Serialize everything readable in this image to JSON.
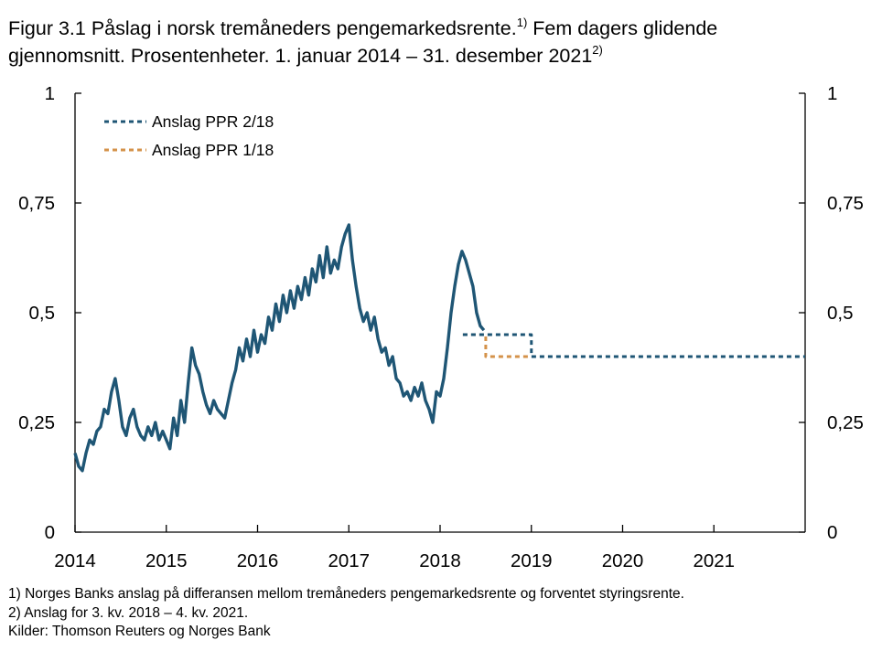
{
  "title": {
    "line1": "Figur 3.1 Påslag i norsk tremåneders pengemarkedsrente.",
    "line1_sup": "1)",
    "line1_tail": " Fem dagers glidende",
    "line2": "gjennomsnitt. Prosentenheter. 1. januar 2014 – 31. desember 2021",
    "line2_sup": "2)"
  },
  "notes": {
    "note1": "1) Norges Banks anslag på differansen mellom tremåneders pengemarkedsrente og forventet styringsrente.",
    "note2": "2) Anslag for 3. kv. 2018 – 4. kv. 2021.",
    "sources": "Kilder: Thomson Reuters og Norges Bank"
  },
  "chart_data": {
    "type": "line",
    "title": "Figur 3.1 Påslag i norsk tremåneders pengemarkedsrente. Fem dagers glidende gjennomsnitt. Prosentenheter. 1. januar 2014 – 31. desember 2021",
    "xlabel": "",
    "ylabel": "Prosentenheter",
    "xlim": [
      2014,
      2022
    ],
    "ylim": [
      0,
      1
    ],
    "x_ticks": [
      "2014",
      "2015",
      "2016",
      "2017",
      "2018",
      "2019",
      "2020",
      "2021"
    ],
    "y_ticks": [
      "0",
      "0,25",
      "0,5",
      "0,75",
      "1"
    ],
    "grid": false,
    "legend_position": "top-left",
    "colors": {
      "historical": "#1f5675",
      "ppr_2_18": "#1f5675",
      "ppr_1_18": "#d4924a",
      "axis": "#000000"
    },
    "series": [
      {
        "name": "",
        "style": "solid",
        "x": [
          2014.0,
          2014.04,
          2014.08,
          2014.12,
          2014.16,
          2014.2,
          2014.24,
          2014.28,
          2014.32,
          2014.36,
          2014.4,
          2014.44,
          2014.48,
          2014.52,
          2014.56,
          2014.6,
          2014.64,
          2014.68,
          2014.72,
          2014.76,
          2014.8,
          2014.84,
          2014.88,
          2014.92,
          2014.96,
          2015.0,
          2015.04,
          2015.08,
          2015.12,
          2015.16,
          2015.2,
          2015.24,
          2015.28,
          2015.32,
          2015.36,
          2015.4,
          2015.44,
          2015.48,
          2015.52,
          2015.56,
          2015.6,
          2015.64,
          2015.68,
          2015.72,
          2015.76,
          2015.8,
          2015.84,
          2015.88,
          2015.92,
          2015.96,
          2016.0,
          2016.04,
          2016.08,
          2016.12,
          2016.16,
          2016.2,
          2016.24,
          2016.28,
          2016.32,
          2016.36,
          2016.4,
          2016.44,
          2016.48,
          2016.52,
          2016.56,
          2016.6,
          2016.64,
          2016.68,
          2016.72,
          2016.76,
          2016.8,
          2016.84,
          2016.88,
          2016.92,
          2016.96,
          2017.0,
          2017.04,
          2017.08,
          2017.12,
          2017.16,
          2017.2,
          2017.24,
          2017.28,
          2017.32,
          2017.36,
          2017.4,
          2017.44,
          2017.48,
          2017.52,
          2017.56,
          2017.6,
          2017.64,
          2017.68,
          2017.72,
          2017.76,
          2017.8,
          2017.84,
          2017.88,
          2017.92,
          2017.96,
          2018.0,
          2018.04,
          2018.08,
          2018.12,
          2018.16,
          2018.2,
          2018.24,
          2018.28,
          2018.32,
          2018.36,
          2018.4,
          2018.44,
          2018.48
        ],
        "y": [
          0.18,
          0.15,
          0.14,
          0.18,
          0.21,
          0.2,
          0.23,
          0.24,
          0.28,
          0.27,
          0.32,
          0.35,
          0.3,
          0.24,
          0.22,
          0.26,
          0.28,
          0.24,
          0.22,
          0.21,
          0.24,
          0.22,
          0.25,
          0.21,
          0.23,
          0.21,
          0.19,
          0.26,
          0.22,
          0.3,
          0.25,
          0.34,
          0.42,
          0.38,
          0.36,
          0.32,
          0.29,
          0.27,
          0.3,
          0.28,
          0.27,
          0.26,
          0.3,
          0.34,
          0.37,
          0.42,
          0.39,
          0.44,
          0.4,
          0.46,
          0.41,
          0.45,
          0.43,
          0.49,
          0.46,
          0.52,
          0.48,
          0.54,
          0.5,
          0.55,
          0.51,
          0.56,
          0.53,
          0.58,
          0.54,
          0.6,
          0.57,
          0.63,
          0.58,
          0.65,
          0.59,
          0.62,
          0.6,
          0.65,
          0.68,
          0.7,
          0.62,
          0.56,
          0.51,
          0.48,
          0.5,
          0.46,
          0.49,
          0.44,
          0.41,
          0.42,
          0.38,
          0.4,
          0.35,
          0.34,
          0.31,
          0.32,
          0.3,
          0.33,
          0.31,
          0.34,
          0.3,
          0.28,
          0.25,
          0.32,
          0.31,
          0.35,
          0.42,
          0.5,
          0.56,
          0.61,
          0.64,
          0.62,
          0.59,
          0.56,
          0.5,
          0.47,
          0.46
        ]
      },
      {
        "name": "Anslag PPR 2/18",
        "style": "dotted",
        "x": [
          2018.25,
          2018.5,
          2018.5,
          2019.0,
          2019.0,
          2022.0
        ],
        "y": [
          0.45,
          0.45,
          0.45,
          0.45,
          0.4,
          0.4
        ]
      },
      {
        "name": "Anslag PPR 1/18",
        "style": "dotted",
        "x": [
          2018.25,
          2018.5,
          2018.5,
          2019.0
        ],
        "y": [
          0.45,
          0.45,
          0.4,
          0.4
        ]
      }
    ]
  }
}
